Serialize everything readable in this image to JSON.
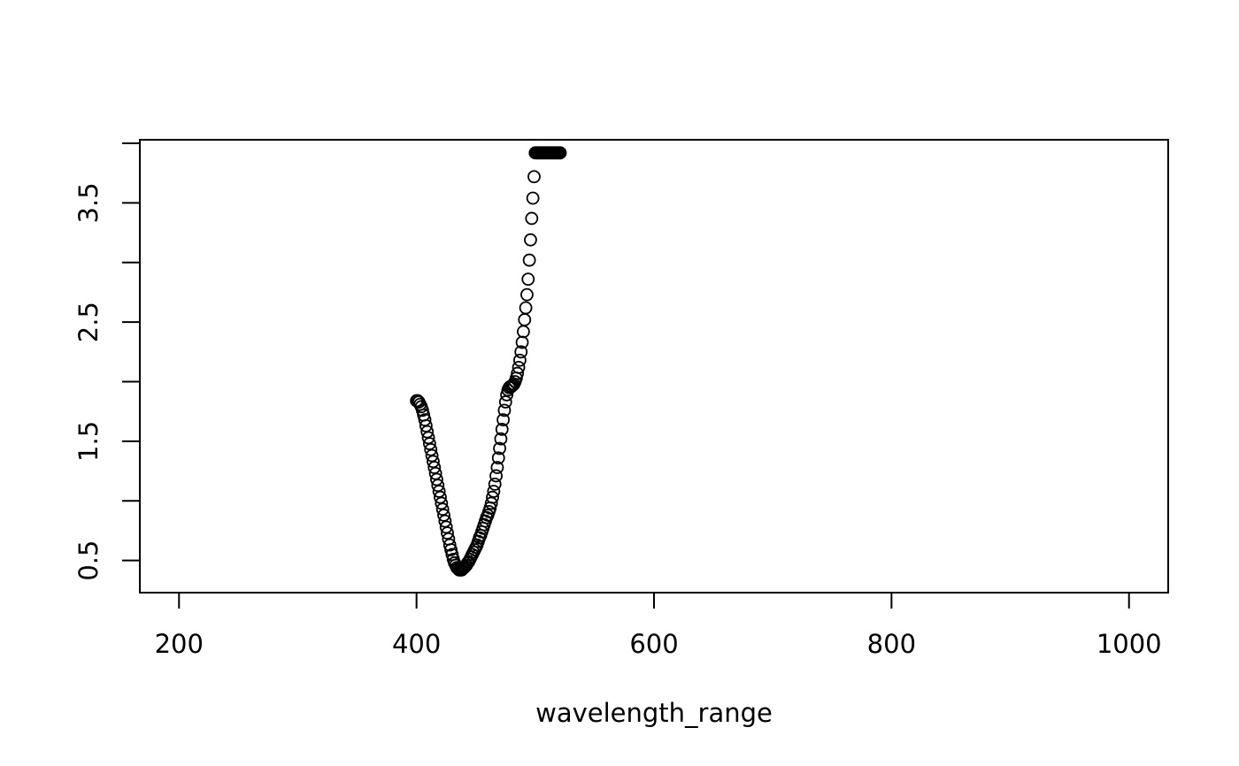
{
  "chart_data": {
    "type": "scatter",
    "title": "",
    "xlabel": "wavelength_range",
    "ylabel": "",
    "xlim": [
      167,
      1033
    ],
    "ylim": [
      0.23,
      4.03
    ],
    "x_ticks": [
      200,
      400,
      600,
      800,
      1000
    ],
    "x_tick_labels": [
      "200",
      "400",
      "600",
      "800",
      "1000"
    ],
    "y_ticks": [
      0.5,
      1.0,
      1.5,
      2.0,
      2.5,
      3.0,
      3.5,
      4.0
    ],
    "y_tick_labels": [
      "0.5",
      "",
      "1.5",
      "",
      "2.5",
      "",
      "3.5",
      ""
    ],
    "marker": "open-circle",
    "marker_color": "#000000",
    "grid": false,
    "series": [
      {
        "x": [
          400,
          401,
          402,
          403,
          404,
          405,
          406,
          407,
          408,
          409,
          410,
          411,
          412,
          413,
          414,
          415,
          416,
          417,
          418,
          419,
          420,
          421,
          422,
          423,
          424,
          425,
          426,
          427,
          428,
          429,
          430,
          431,
          432,
          433,
          434,
          435,
          436,
          437,
          438,
          439,
          440,
          441,
          442,
          443,
          444,
          445,
          446,
          447,
          448,
          449,
          450,
          451,
          452,
          453,
          454,
          455,
          456,
          457,
          458,
          459,
          460,
          461,
          462,
          463,
          464,
          465,
          466,
          467,
          468,
          469,
          470,
          471,
          472,
          473,
          474,
          475,
          476,
          477,
          478,
          479,
          480,
          481,
          482,
          483,
          484,
          485,
          486,
          487,
          488,
          489,
          490,
          491,
          492,
          493,
          494,
          495,
          496,
          497,
          498,
          499,
          500,
          501,
          502,
          503,
          504,
          505,
          506,
          507,
          508,
          509,
          510,
          511,
          512,
          513,
          514,
          515,
          516,
          517,
          518,
          519,
          520,
          521
        ],
        "y": [
          1.84,
          1.84,
          1.83,
          1.81,
          1.79,
          1.76,
          1.72,
          1.68,
          1.63,
          1.58,
          1.53,
          1.48,
          1.43,
          1.38,
          1.33,
          1.28,
          1.23,
          1.18,
          1.13,
          1.08,
          1.03,
          0.98,
          0.93,
          0.88,
          0.83,
          0.78,
          0.73,
          0.68,
          0.63,
          0.59,
          0.55,
          0.51,
          0.48,
          0.46,
          0.44,
          0.43,
          0.42,
          0.42,
          0.42,
          0.43,
          0.44,
          0.45,
          0.46,
          0.48,
          0.49,
          0.51,
          0.53,
          0.55,
          0.57,
          0.59,
          0.61,
          0.63,
          0.66,
          0.69,
          0.71,
          0.74,
          0.77,
          0.8,
          0.83,
          0.86,
          0.88,
          0.91,
          0.94,
          0.98,
          1.03,
          1.08,
          1.14,
          1.21,
          1.28,
          1.36,
          1.44,
          1.52,
          1.6,
          1.68,
          1.76,
          1.83,
          1.89,
          1.93,
          1.95,
          1.96,
          1.96,
          1.97,
          1.98,
          2.0,
          2.03,
          2.07,
          2.12,
          2.18,
          2.25,
          2.33,
          2.42,
          2.52,
          2.62,
          2.73,
          2.86,
          3.02,
          3.19,
          3.37,
          3.54,
          3.72,
          3.92,
          3.92,
          3.92,
          3.92,
          3.92,
          3.92,
          3.92,
          3.92,
          3.92,
          3.92,
          3.92,
          3.92,
          3.92,
          3.92,
          3.92,
          3.92,
          3.92,
          3.92,
          3.92,
          3.92,
          3.92,
          3.92
        ]
      }
    ]
  }
}
